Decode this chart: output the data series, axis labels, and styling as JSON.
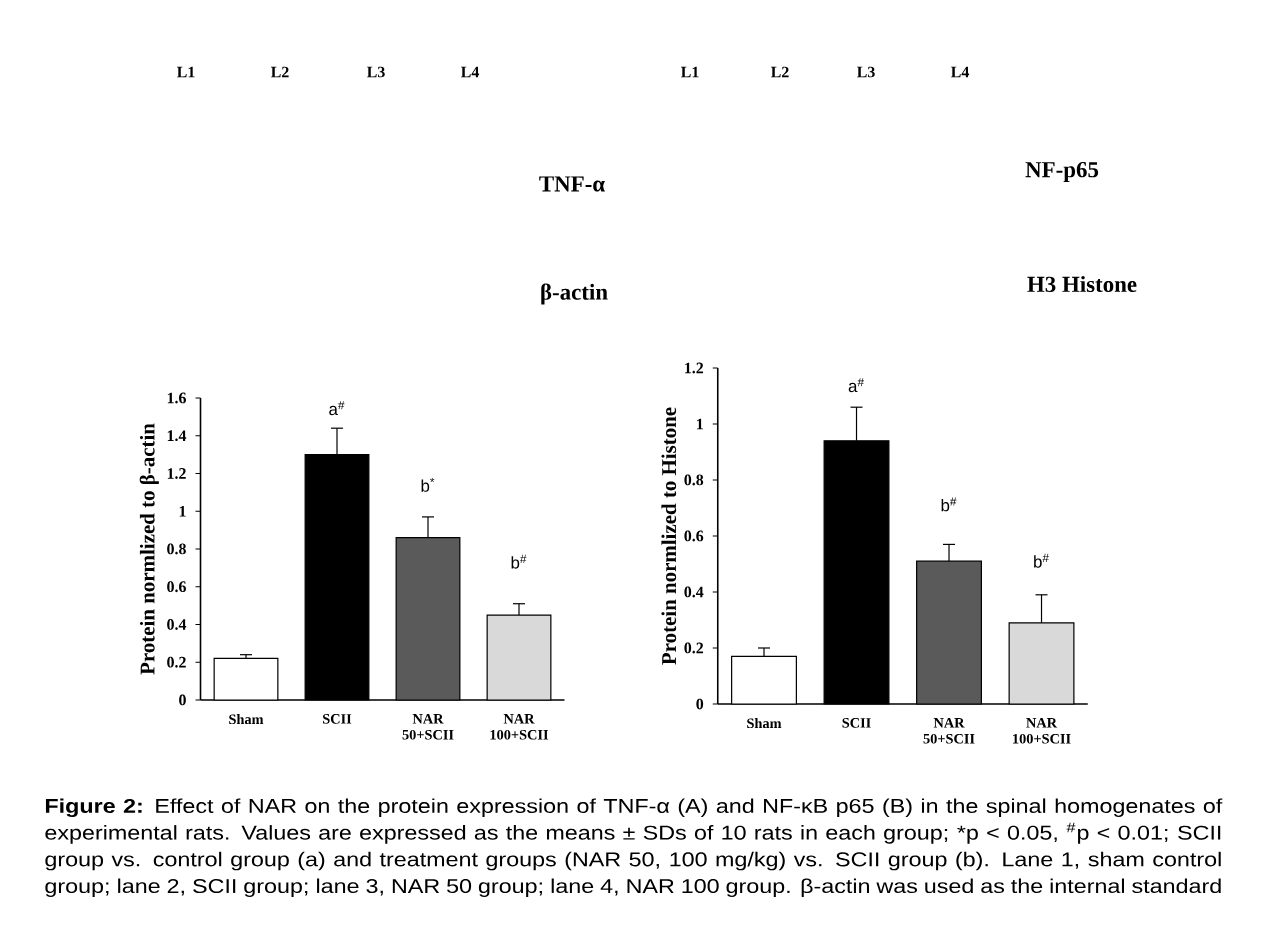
{
  "chart_data": [
    {
      "type": "bar",
      "ylabel": "Protein normlized to β-actin",
      "categories": [
        "Sham",
        "SCII",
        "NAR 50+SCII",
        "NAR 100+SCII"
      ],
      "values": [
        0.22,
        1.3,
        0.86,
        0.45
      ],
      "errors": [
        0.02,
        0.14,
        0.11,
        0.06
      ],
      "colors": [
        "#ffffff",
        "#000000",
        "#5a5a5a",
        "#d9d9d9"
      ],
      "ylim": [
        0,
        1.6
      ],
      "yticks": [
        0,
        0.2,
        0.4,
        0.6,
        0.8,
        1,
        1.2,
        1.4,
        1.6
      ],
      "annotations": [
        "a$^{#}$",
        "b$^{*}$",
        "b$^{#}$",
        "L1",
        "L2",
        "L3",
        "L4",
        "TNF-α",
        "β-actin",
        "**Figure 2:** Effect of NAR on the protein expression of TNF-α (A) and NF-κB p65 (B) in the spinal homogenates of experimental rats. Values are expressed as the means ± SDs of 10 rats in each group; *p < 0.05, $^{#}$p < 0.01; SCII group vs. control group (a) and treatment groups (NAR 50, 100 mg/kg) vs. SCII group (b). Lane 1, sham control group; lane 2, SCII group; lane 3, NAR 50 group; lane 4, NAR 100 group. β-actin was used as the internal standard"
      ]
    },
    {
      "type": "bar",
      "ylabel": "Protein normlized to Histone",
      "categories": [
        "Sham",
        "SCII",
        "NAR 50+SCII",
        "NAR 100+SCII"
      ],
      "values": [
        0.17,
        0.94,
        0.51,
        0.29
      ],
      "errors": [
        0.03,
        0.12,
        0.06,
        0.1
      ],
      "colors": [
        "#ffffff",
        "#000000",
        "#5a5a5a",
        "#d9d9d9"
      ],
      "ylim": [
        0,
        1.2
      ],
      "yticks": [
        0,
        0.2,
        0.4,
        0.6,
        0.8,
        1,
        1.2
      ],
      "annotations": [
        "a$^{#}$",
        "b$^{#}$",
        "b$^{#}$",
        "L1",
        "L2",
        "L3",
        "L4",
        "NF-p65",
        "H3 Histone"
      ]
    }
  ]
}
